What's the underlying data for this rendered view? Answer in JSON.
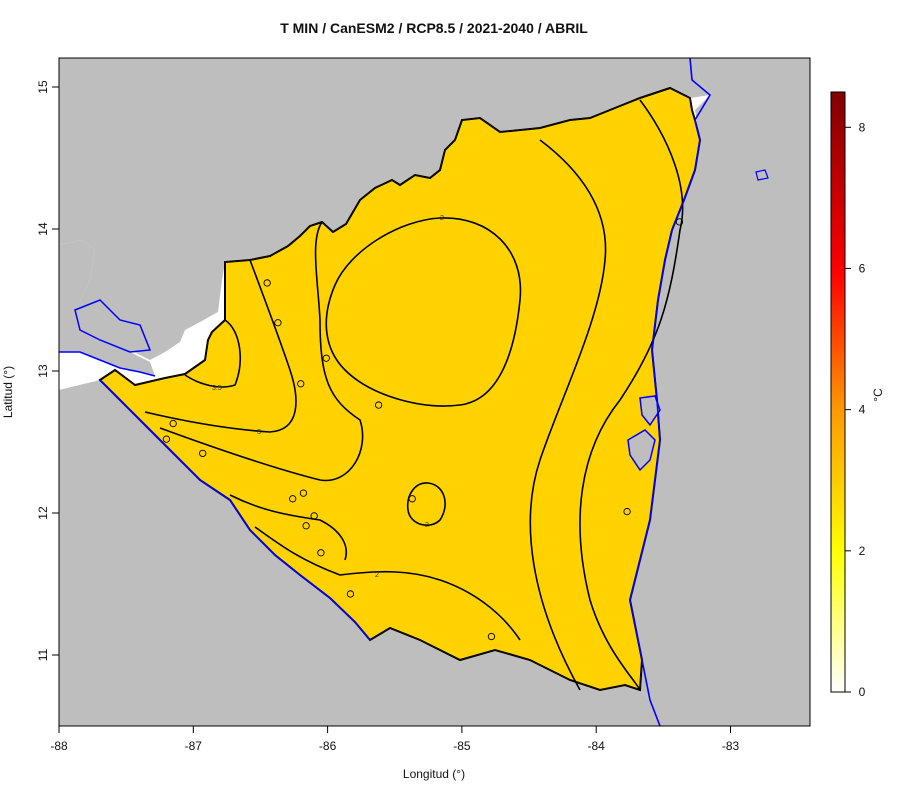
{
  "title": "T MIN / CanESM2 / RCP8.5 / 2021-2040 / ABRIL",
  "chart_data": {
    "type": "heatmap",
    "title": "T MIN / CanESM2 / RCP8.5 / 2021-2040 / ABRIL",
    "xlabel": "Longitud (°)",
    "ylabel": "Latitud (°)",
    "xlim": [
      -88,
      -82.4
    ],
    "ylim": [
      10.5,
      15.2
    ],
    "x_ticks": [
      "-88",
      "-87",
      "-86",
      "-85",
      "-84",
      "-83"
    ],
    "y_ticks": [
      "11",
      "12",
      "13",
      "14",
      "15"
    ],
    "colorbar": {
      "label": "°C",
      "range": [
        0,
        8.5
      ],
      "ticks": [
        "0",
        "2",
        "4",
        "6",
        "8"
      ],
      "colors": [
        "#ffffff",
        "#ffff00",
        "#ff9900",
        "#ff0000",
        "#800000"
      ]
    },
    "contours": [
      {
        "label": "2",
        "level": 2
      },
      {
        "label": "2",
        "level": 2
      },
      {
        "label": "2",
        "level": 2
      },
      {
        "label": "3",
        "level": 3
      },
      {
        "label": "3.5",
        "level": 3.5
      }
    ],
    "stations": [
      {
        "lon": -86.45,
        "lat": 13.62
      },
      {
        "lon": -86.37,
        "lat": 13.34
      },
      {
        "lon": -86.01,
        "lat": 13.09
      },
      {
        "lon": -86.2,
        "lat": 12.91
      },
      {
        "lon": -85.62,
        "lat": 12.76
      },
      {
        "lon": -87.15,
        "lat": 12.63
      },
      {
        "lon": -87.2,
        "lat": 12.52
      },
      {
        "lon": -86.93,
        "lat": 12.42
      },
      {
        "lon": -86.26,
        "lat": 12.1
      },
      {
        "lon": -86.18,
        "lat": 12.14
      },
      {
        "lon": -86.1,
        "lat": 11.98
      },
      {
        "lon": -86.16,
        "lat": 11.91
      },
      {
        "lon": -86.05,
        "lat": 11.72
      },
      {
        "lon": -85.83,
        "lat": 11.43
      },
      {
        "lon": -85.37,
        "lat": 12.1
      },
      {
        "lon": -84.78,
        "lat": 11.13
      },
      {
        "lon": -83.77,
        "lat": 12.01
      },
      {
        "lon": -83.38,
        "lat": 14.05
      }
    ]
  },
  "colors": {
    "land_gray": "#bebebe",
    "water_line": "#0000ff",
    "border": "#000000"
  }
}
